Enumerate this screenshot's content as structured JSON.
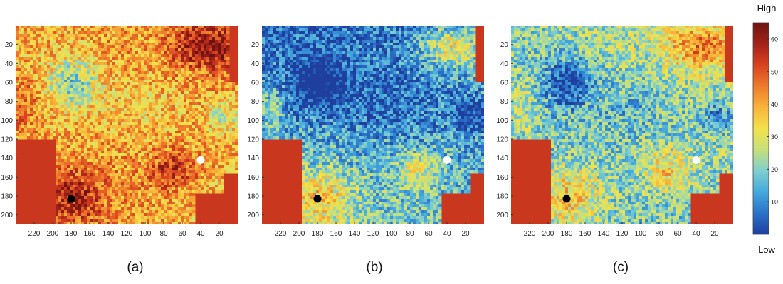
{
  "chart_data": {
    "type": "heatmap",
    "x_ticks": [
      220,
      200,
      180,
      160,
      140,
      120,
      100,
      80,
      60,
      40,
      20
    ],
    "y_ticks": [
      20,
      40,
      60,
      80,
      100,
      120,
      140,
      160,
      180,
      200
    ],
    "xlim": [
      240,
      0
    ],
    "ylim": [
      0,
      210
    ],
    "x_reversed": true,
    "grid": false,
    "panels": [
      {
        "label": "(a)",
        "markers": [
          {
            "x": 180,
            "y": 183,
            "color": "#000000"
          },
          {
            "x": 40,
            "y": 142,
            "color": "#ffffff"
          }
        ]
      },
      {
        "label": "(b)",
        "markers": [
          {
            "x": 180,
            "y": 183,
            "color": "#000000"
          },
          {
            "x": 40,
            "y": 142,
            "color": "#ffffff"
          }
        ]
      },
      {
        "label": "(c)",
        "markers": [
          {
            "x": 180,
            "y": 183,
            "color": "#000000"
          },
          {
            "x": 40,
            "y": 142,
            "color": "#ffffff"
          }
        ]
      }
    ],
    "colorbar": {
      "ticks": [
        10,
        20,
        30,
        40,
        50,
        60
      ],
      "range": [
        0,
        65
      ],
      "high_label": "High",
      "low_label": "Low",
      "colors": [
        "#1e3f9e",
        "#2b72c9",
        "#45a9dc",
        "#7fcfce",
        "#c7e07a",
        "#f3e24a",
        "#f8b43a",
        "#ee7a2c",
        "#d9431f",
        "#a3211a",
        "#6e1410"
      ]
    },
    "background_color": "#c9371f"
  }
}
